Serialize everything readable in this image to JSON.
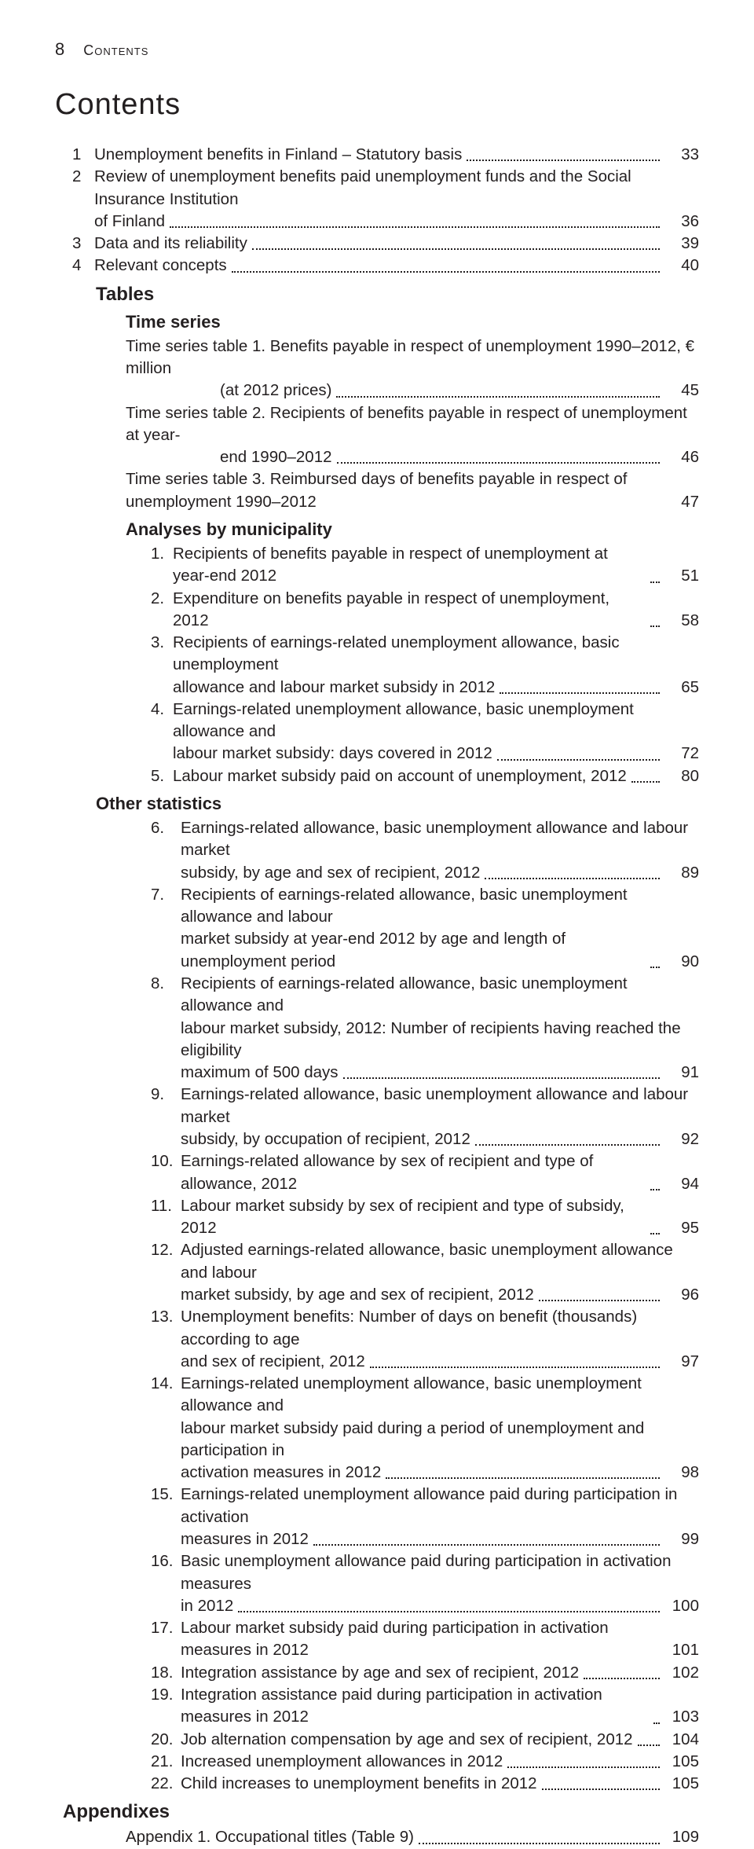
{
  "header": {
    "page_number": "8",
    "label": "Contents"
  },
  "title": "Contents",
  "chapters": [
    {
      "num": "1",
      "text": "Unemployment benefits in Finland – Statutory basis",
      "page": "33"
    },
    {
      "num": "2",
      "text_lines": [
        "Review of unemployment benefits paid unemployment funds and the Social Insurance Institution",
        "of Finland"
      ],
      "page": "36"
    },
    {
      "num": "3",
      "text": "Data and its reliability",
      "page": "39"
    },
    {
      "num": "4",
      "text": "Relevant concepts",
      "page": "40"
    }
  ],
  "tables_heading": "Tables",
  "time_series_heading": "Time series",
  "time_series": [
    {
      "label": "Time series table 1.",
      "lines": [
        "Benefits payable in respect of unemployment 1990–2012, € million",
        "(at 2012 prices)"
      ],
      "page": "45"
    },
    {
      "label": "Time series table 2.",
      "lines": [
        "Recipients of benefits payable in respect of unemployment at year-",
        "end 1990–2012"
      ],
      "page": "46"
    },
    {
      "label": "Time series table 3.",
      "lines": [
        "Reimbursed days of benefits payable in respect of unemployment 1990–2012"
      ],
      "page": "47",
      "no_leader": true
    }
  ],
  "analyses_heading": "Analyses by municipality",
  "analyses": [
    {
      "num": "1.",
      "lines": [
        "Recipients of benefits payable in respect of unemployment at year-end 2012"
      ],
      "page": "51"
    },
    {
      "num": "2.",
      "lines": [
        "Expenditure on benefits payable in respect of unemployment, 2012"
      ],
      "page": "58"
    },
    {
      "num": "3.",
      "lines": [
        "Recipients of earnings-related unemployment allowance, basic unemployment",
        "allowance and labour market subsidy in 2012"
      ],
      "page": "65"
    },
    {
      "num": "4.",
      "lines": [
        "Earnings-related unemployment allowance, basic unemployment allowance and",
        "labour market subsidy: days covered in 2012"
      ],
      "page": "72"
    },
    {
      "num": "5.",
      "lines": [
        "Labour market subsidy paid on account of unemployment, 2012"
      ],
      "page": "80"
    }
  ],
  "other_heading": "Other statistics",
  "other": [
    {
      "num": "6.",
      "lines": [
        "Earnings-related allowance, basic unemployment allowance and labour market",
        "subsidy, by age and sex of recipient, 2012"
      ],
      "page": "89"
    },
    {
      "num": "7.",
      "lines": [
        "Recipients of earnings-related allowance, basic unemployment allowance and labour",
        "market subsidy at year-end 2012 by age and length of unemployment period"
      ],
      "page": "90"
    },
    {
      "num": "8.",
      "lines": [
        "Recipients of earnings-related allowance, basic unemployment allowance and",
        "labour market subsidy, 2012: Number of recipients having reached the eligibility",
        "maximum of 500 days"
      ],
      "page": "91"
    },
    {
      "num": "9.",
      "lines": [
        "Earnings-related allowance, basic unemployment allowance and labour market",
        "subsidy, by occupation of recipient, 2012"
      ],
      "page": "92"
    },
    {
      "num": "10.",
      "lines": [
        "Earnings-related allowance by sex of recipient and type of allowance, 2012"
      ],
      "page": "94"
    },
    {
      "num": "11.",
      "lines": [
        "Labour market subsidy by sex of recipient and type of subsidy, 2012"
      ],
      "page": "95"
    },
    {
      "num": "12.",
      "lines": [
        "Adjusted earnings-related allowance, basic unemployment allowance and labour",
        "market subsidy, by age and sex of recipient, 2012"
      ],
      "page": "96"
    },
    {
      "num": "13.",
      "lines": [
        "Unemployment benefits: Number of days on benefit (thousands) according to age",
        "and sex of recipient, 2012"
      ],
      "page": "97"
    },
    {
      "num": "14.",
      "lines": [
        "Earnings-related unemployment allowance, basic unemployment allowance and",
        "labour market subsidy paid during a period of unemployment and participation in",
        "activation measures in 2012"
      ],
      "page": "98"
    },
    {
      "num": "15.",
      "lines": [
        "Earnings-related unemployment allowance paid during participation in activation",
        "measures in 2012"
      ],
      "page": "99"
    },
    {
      "num": "16.",
      "lines": [
        "Basic unemployment allowance paid during participation in activation measures",
        "in 2012"
      ],
      "page": "100"
    },
    {
      "num": "17.",
      "lines": [
        "Labour market subsidy paid during participation in activation measures in 2012"
      ],
      "page": "101",
      "no_leader": true
    },
    {
      "num": "18.",
      "lines": [
        "Integration assistance by age and sex of recipient, 2012"
      ],
      "page": "102"
    },
    {
      "num": "19.",
      "lines": [
        "Integration assistance paid during participation in activation measures in 2012"
      ],
      "page": "103",
      "short_leader": true
    },
    {
      "num": "20.",
      "lines": [
        "Job alternation compensation by age and sex of recipient, 2012"
      ],
      "page": "104"
    },
    {
      "num": "21.",
      "lines": [
        "Increased unemployment allowances in 2012"
      ],
      "page": "105"
    },
    {
      "num": "22.",
      "lines": [
        "Child increases to unemployment benefits in 2012"
      ],
      "page": "105"
    }
  ],
  "appendixes_heading": "Appendixes",
  "appendixes": [
    {
      "label": "Appendix 1.",
      "text": "Occupational titles (Table 9)",
      "page": "109"
    }
  ]
}
